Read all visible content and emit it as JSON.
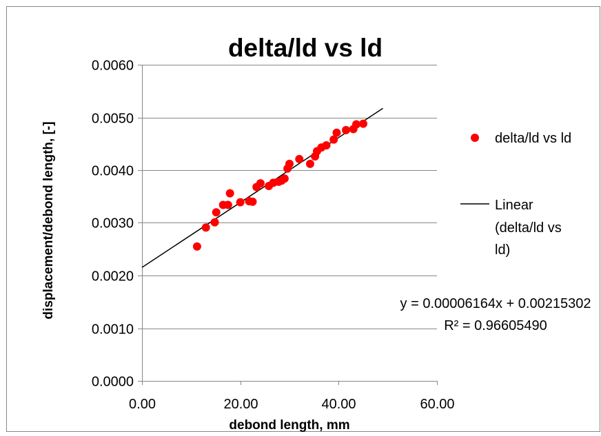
{
  "chart_data": {
    "type": "scatter",
    "title": "delta/ld vs ld",
    "xlabel": "debond length, mm",
    "ylabel": "displacement/debond length,  [-]",
    "xlim": [
      0,
      60
    ],
    "ylim": [
      0,
      0.006
    ],
    "x_ticks": [
      "0.00",
      "20.00",
      "40.00",
      "60.00"
    ],
    "y_ticks": [
      "0.0000",
      "0.0010",
      "0.0020",
      "0.0030",
      "0.0040",
      "0.0050",
      "0.0060"
    ],
    "grid": "horizontal",
    "legend_position": "right",
    "colors": {
      "points": "#ff0000",
      "trendline": "#000000",
      "gridlines": "#868686"
    },
    "series": [
      {
        "name": "delta/ld vs ld",
        "kind": "scatter",
        "x": [
          11.2,
          13.0,
          14.8,
          15.1,
          16.5,
          17.5,
          17.9,
          20.0,
          21.8,
          22.5,
          23.3,
          24.1,
          25.8,
          26.7,
          27.8,
          28.4,
          29.0,
          29.6,
          30.0,
          32.0,
          34.2,
          35.2,
          35.6,
          36.5,
          37.5,
          39.0,
          39.6,
          41.5,
          43.0,
          43.6,
          45.0
        ],
        "y": [
          0.00255,
          0.00291,
          0.00301,
          0.0032,
          0.00334,
          0.00334,
          0.00356,
          0.00339,
          0.00341,
          0.0034,
          0.00368,
          0.00375,
          0.0037,
          0.00376,
          0.00378,
          0.0038,
          0.00384,
          0.00403,
          0.00412,
          0.00421,
          0.00412,
          0.00426,
          0.00436,
          0.00443,
          0.00447,
          0.00458,
          0.00471,
          0.00476,
          0.00478,
          0.00487,
          0.00488
        ]
      },
      {
        "name": "Linear (delta/ld vs ld)",
        "kind": "trendline",
        "slope": 6.164e-05,
        "intercept": 0.00215302,
        "x_range": [
          0,
          49
        ]
      }
    ],
    "legend": [
      {
        "label": "delta/ld vs ld",
        "marker": "point"
      },
      {
        "label_lines": [
          "Linear",
          "(delta/ld vs",
          "ld)"
        ],
        "marker": "line"
      }
    ],
    "annotation": {
      "equation": "y = 0.00006164x + 0.00215302",
      "r_squared": "R² = 0.96605490"
    }
  }
}
